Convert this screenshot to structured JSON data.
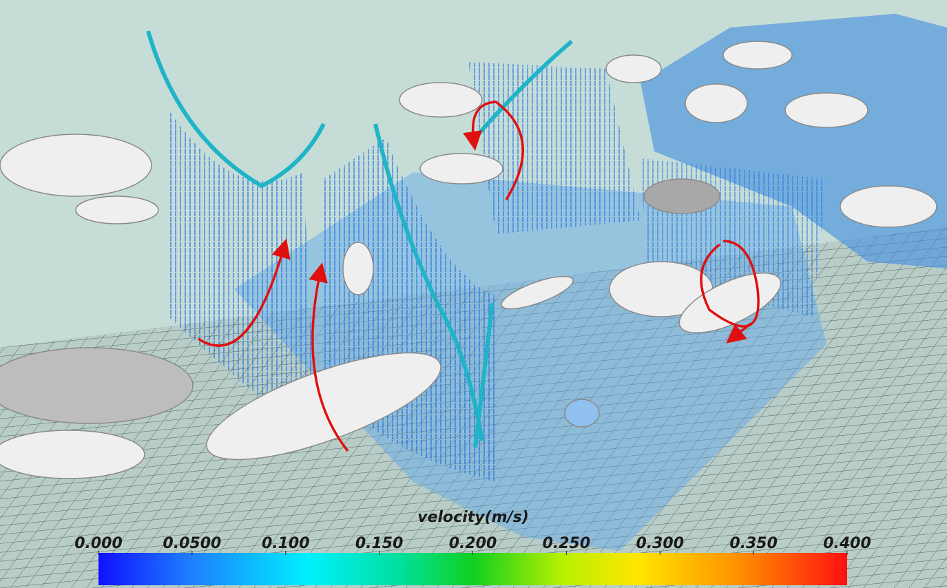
{
  "colorbar": {
    "title": "velocity(m/s)",
    "range": [
      0,
      0.4
    ],
    "ticks": [
      {
        "value": 0,
        "label": "0.000"
      },
      {
        "value": 0.05,
        "label": "0.0500"
      },
      {
        "value": 0.1,
        "label": "0.100"
      },
      {
        "value": 0.15,
        "label": "0.150"
      },
      {
        "value": 0.2,
        "label": "0.200"
      },
      {
        "value": 0.25,
        "label": "0.250"
      },
      {
        "value": 0.3,
        "label": "0.300"
      },
      {
        "value": 0.35,
        "label": "0.350"
      },
      {
        "value": 0.4,
        "label": "0.400"
      }
    ]
  }
}
